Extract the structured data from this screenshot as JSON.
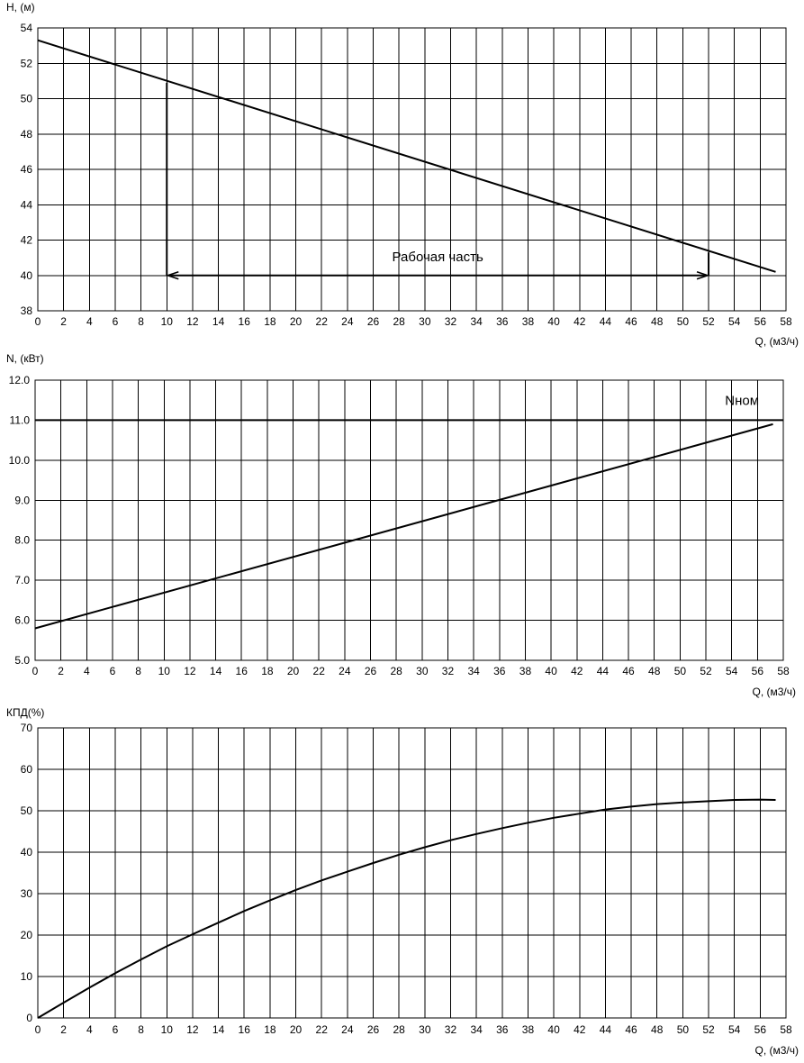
{
  "chart_data": [
    {
      "type": "line",
      "id": "head",
      "ylabel": "H, (м)",
      "xlabel": "Q, (м3/ч)",
      "xlim": [
        0,
        58
      ],
      "ylim": [
        38,
        54
      ],
      "x_ticks": [
        0,
        2,
        4,
        6,
        8,
        10,
        12,
        14,
        16,
        18,
        20,
        22,
        24,
        26,
        28,
        30,
        32,
        34,
        36,
        38,
        40,
        42,
        44,
        46,
        48,
        50,
        52,
        54,
        56,
        58
      ],
      "y_ticks": [
        38,
        40,
        42,
        44,
        46,
        48,
        50,
        52,
        54
      ],
      "y_tick_labels": [
        "38",
        "40",
        "42",
        "44",
        "46",
        "48",
        "50",
        "52",
        "54"
      ],
      "grid": true,
      "series": [
        {
          "x": [
            0,
            57.2
          ],
          "y": [
            53.3,
            40.2
          ]
        }
      ],
      "annotation": {
        "text": "Рабочая часть",
        "q_from": 10,
        "q_to": 52,
        "h_at_from": 50.9,
        "h_at_to": 41.3,
        "arrow_level": 40
      }
    },
    {
      "type": "line",
      "id": "power",
      "ylabel": "N, (кВт)",
      "xlabel": "Q, (м3/ч)",
      "xlim": [
        0,
        58
      ],
      "ylim": [
        5,
        12
      ],
      "x_ticks": [
        0,
        2,
        4,
        6,
        8,
        10,
        12,
        14,
        16,
        18,
        20,
        22,
        24,
        26,
        28,
        30,
        32,
        34,
        36,
        38,
        40,
        42,
        44,
        46,
        48,
        50,
        52,
        54,
        56,
        58
      ],
      "y_ticks": [
        5,
        6,
        7,
        8,
        9,
        10,
        11,
        12
      ],
      "y_tick_labels": [
        "5.0",
        "6.0",
        "7.0",
        "8.0",
        "9.0",
        "10.0",
        "11.0",
        "12.0"
      ],
      "grid": true,
      "series": [
        {
          "x": [
            0,
            57.2
          ],
          "y": [
            5.8,
            10.9
          ]
        }
      ],
      "reference_line": {
        "label": "Nном",
        "value": 11.0
      }
    },
    {
      "type": "line",
      "id": "efficiency",
      "ylabel": "КПД(%)",
      "xlabel": "Q, (м3/ч)",
      "xlim": [
        0,
        58
      ],
      "ylim": [
        0,
        70
      ],
      "x_ticks": [
        0,
        2,
        4,
        6,
        8,
        10,
        12,
        14,
        16,
        18,
        20,
        22,
        24,
        26,
        28,
        30,
        32,
        34,
        36,
        38,
        40,
        42,
        44,
        46,
        48,
        50,
        52,
        54,
        56,
        58
      ],
      "y_ticks": [
        0,
        10,
        20,
        30,
        40,
        50,
        60,
        70
      ],
      "y_tick_labels": [
        "0",
        "10",
        "20",
        "30",
        "40",
        "50",
        "60",
        "70"
      ],
      "grid": true,
      "series": [
        {
          "x": [
            0,
            2,
            4,
            6,
            8,
            10,
            12,
            14,
            16,
            18,
            20,
            22,
            24,
            26,
            28,
            30,
            32,
            34,
            36,
            38,
            40,
            42,
            44,
            46,
            48,
            50,
            52,
            54,
            56,
            57.2
          ],
          "y": [
            0,
            3.7,
            7.3,
            10.8,
            14.1,
            17.3,
            20.2,
            23.0,
            25.8,
            28.4,
            30.9,
            33.2,
            35.3,
            37.4,
            39.4,
            41.2,
            42.9,
            44.4,
            45.8,
            47.1,
            48.3,
            49.3,
            50.3,
            51.0,
            51.6,
            52.0,
            52.3,
            52.6,
            52.7,
            52.6
          ]
        }
      ]
    }
  ]
}
